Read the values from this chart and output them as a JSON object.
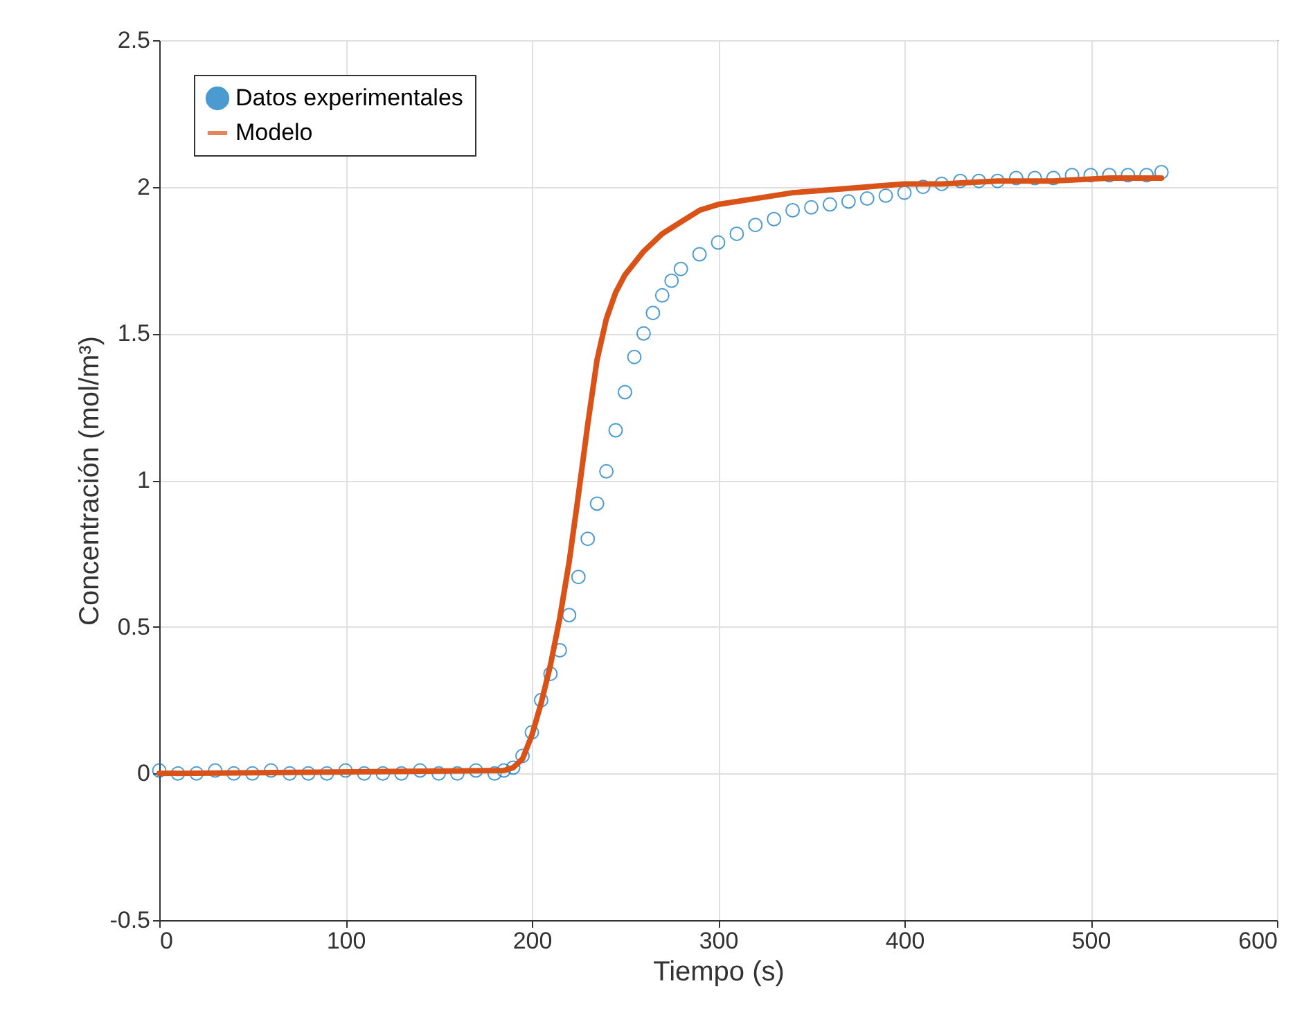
{
  "chart_data": {
    "type": "scatter",
    "xlabel": "Tiempo (s)",
    "ylabel": "Concentración (mol/m³)",
    "xlim": [
      0,
      600
    ],
    "xticks": [
      0,
      100,
      200,
      300,
      400,
      500,
      600
    ],
    "ylim": [
      -0.5,
      2.5
    ],
    "yticks": [
      -0.5,
      0,
      0.5,
      1,
      1.5,
      2,
      2.5
    ],
    "grid": true,
    "legend": "top left",
    "series": [
      {
        "name": "Datos experimentales",
        "marker": "circle",
        "color": "#0072bd",
        "x": [
          0,
          10,
          20,
          30,
          40,
          50,
          60,
          70,
          80,
          90,
          100,
          110,
          120,
          130,
          140,
          150,
          160,
          170,
          180,
          185,
          190,
          195,
          200,
          205,
          210,
          215,
          220,
          225,
          230,
          235,
          240,
          245,
          250,
          255,
          260,
          265,
          270,
          275,
          280,
          290,
          300,
          310,
          320,
          330,
          340,
          350,
          360,
          370,
          380,
          390,
          400,
          410,
          420,
          430,
          440,
          450,
          460,
          470,
          480,
          490,
          500,
          510,
          520,
          530,
          538
        ],
        "values": [
          0.01,
          0,
          0,
          0.01,
          0,
          0,
          0.01,
          0,
          0,
          0,
          0.01,
          0,
          0,
          0,
          0.01,
          0,
          0,
          0.01,
          0,
          0.01,
          0.02,
          0.06,
          0.14,
          0.25,
          0.34,
          0.42,
          0.54,
          0.67,
          0.8,
          0.92,
          1.03,
          1.17,
          1.3,
          1.42,
          1.5,
          1.57,
          1.63,
          1.68,
          1.72,
          1.77,
          1.81,
          1.84,
          1.87,
          1.89,
          1.92,
          1.93,
          1.94,
          1.95,
          1.96,
          1.97,
          1.98,
          2,
          2.01,
          2.02,
          2.02,
          2.02,
          2.03,
          2.03,
          2.03,
          2.04,
          2.04,
          2.04,
          2.04,
          2.04,
          2.05
        ]
      },
      {
        "name": "Modelo",
        "type": "line",
        "marker": "none",
        "color": "#d95319",
        "x": [
          0,
          185,
          190,
          195,
          200,
          205,
          210,
          215,
          220,
          225,
          230,
          235,
          240,
          245,
          250,
          260,
          270,
          280,
          290,
          300,
          320,
          340,
          360,
          380,
          400,
          420,
          450,
          480,
          510,
          538
        ],
        "values": [
          0,
          0.01,
          0.02,
          0.05,
          0.13,
          0.24,
          0.37,
          0.53,
          0.72,
          0.95,
          1.19,
          1.41,
          1.55,
          1.64,
          1.7,
          1.78,
          1.84,
          1.88,
          1.92,
          1.94,
          1.96,
          1.98,
          1.99,
          2,
          2.01,
          2.01,
          2.02,
          2.02,
          2.03,
          2.03
        ]
      }
    ]
  }
}
